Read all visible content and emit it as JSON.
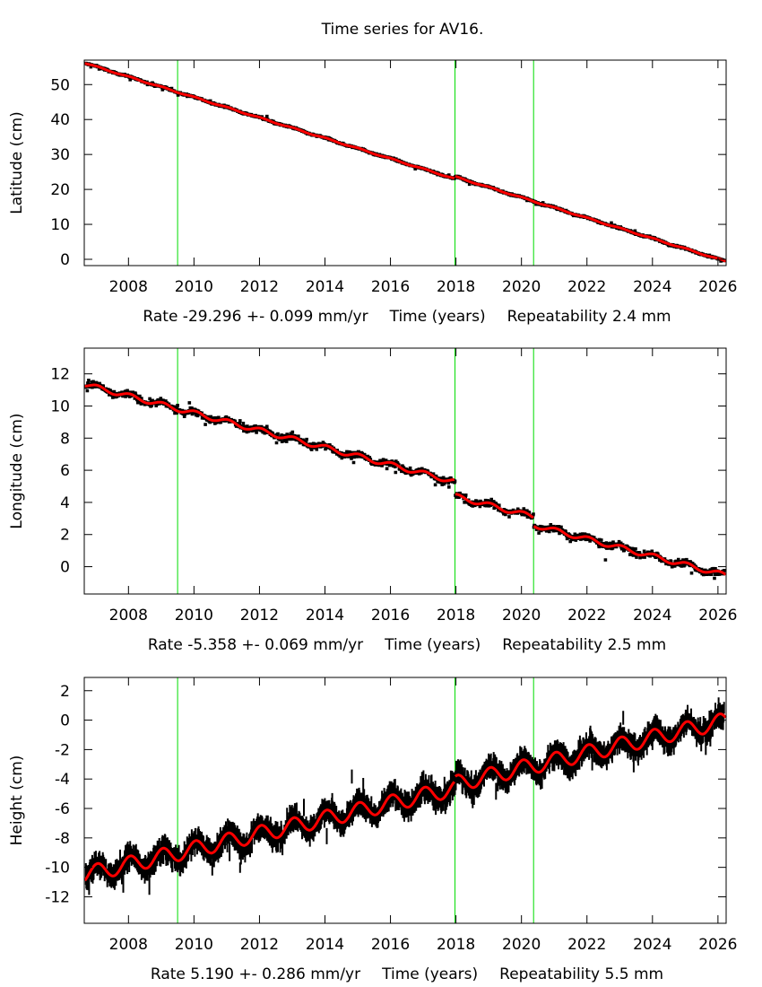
{
  "chart_data": [
    {
      "type": "scatter",
      "title": "Time series for AV16.",
      "ylabel": "Latitude (cm)",
      "xlabel": "Time (years)",
      "rate_text": "Rate -29.296 +- 0.099 mm/yr",
      "repeat_text": "Repeatability 2.4 mm",
      "xlim": [
        2006.65,
        2026.25
      ],
      "ylim": [
        -1.8,
        57
      ],
      "xticks": [
        2008,
        2010,
        2012,
        2014,
        2016,
        2018,
        2020,
        2022,
        2024,
        2026
      ],
      "yticks": [
        0,
        10,
        20,
        30,
        40,
        50
      ],
      "events": [
        2009.5,
        2017.97,
        2020.37
      ],
      "model": {
        "start_value": 56.2,
        "rate_cm_per_yr": -2.9296,
        "seasonal_amp": 0.15,
        "offsets": [
          [
            2017.97,
            0.6
          ]
        ]
      },
      "scatter_noise": 0.35,
      "grid": false
    },
    {
      "type": "scatter",
      "ylabel": "Longitude (cm)",
      "xlabel": "Time (years)",
      "rate_text": "Rate -5.358 +- 0.069 mm/yr",
      "repeat_text": "Repeatability 2.5 mm",
      "xlim": [
        2006.65,
        2026.25
      ],
      "ylim": [
        -1.7,
        13.6
      ],
      "xticks": [
        2008,
        2010,
        2012,
        2014,
        2016,
        2018,
        2020,
        2022,
        2024,
        2026
      ],
      "yticks": [
        0,
        2,
        4,
        6,
        8,
        10,
        12
      ],
      "events": [
        2009.5,
        2017.97,
        2020.37
      ],
      "model": {
        "start_value": 11.35,
        "rate_cm_per_yr": -0.5358,
        "seasonal_amp": 0.15,
        "offsets": [
          [
            2017.97,
            -0.9
          ],
          [
            2020.37,
            -0.5
          ]
        ]
      },
      "scatter_noise": 0.3,
      "grid": false
    },
    {
      "type": "scatter",
      "ylabel": "Height (cm)",
      "xlabel": "Time (years)",
      "rate_text": "Rate 5.190 +- 0.286 mm/yr",
      "repeat_text": "Repeatability 5.5 mm",
      "xlim": [
        2006.65,
        2026.25
      ],
      "ylim": [
        -13.8,
        2.9
      ],
      "xticks": [
        2008,
        2010,
        2012,
        2014,
        2016,
        2018,
        2020,
        2022,
        2024,
        2026
      ],
      "yticks": [
        -12,
        -10,
        -8,
        -6,
        -4,
        -2,
        0,
        2
      ],
      "events": [
        2009.5,
        2017.97,
        2020.37
      ],
      "model": {
        "start_value": -10.5,
        "rate_cm_per_yr": 0.519,
        "seasonal_amp": 0.55,
        "offsets": [
          [
            2017.97,
            0.3
          ]
        ]
      },
      "scatter_noise": 0.7,
      "grid": false
    }
  ],
  "colors": {
    "data": "#000000",
    "model": "#ff0000",
    "event": "#00dd00",
    "axis": "#000000"
  }
}
